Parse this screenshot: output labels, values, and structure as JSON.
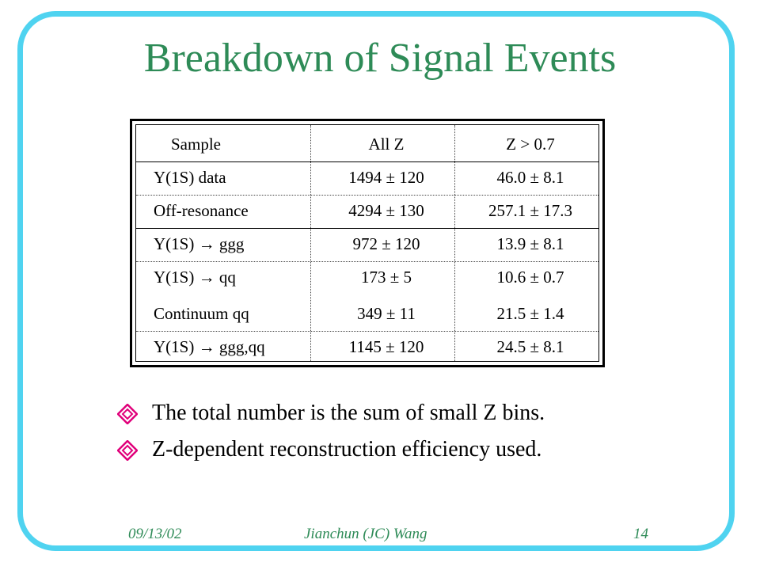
{
  "slide": {
    "title": "Breakdown of Signal Events"
  },
  "table": {
    "headers": [
      "Sample",
      "All Z",
      "Z > 0.7"
    ],
    "rows": [
      [
        "Y(1S) data",
        "1494 ± 120",
        "46.0 ± 8.1"
      ],
      [
        "Off-resonance",
        "4294 ± 130",
        "257.1 ± 17.3"
      ],
      [
        "Y(1S) → ggg",
        "972 ± 120",
        "13.9 ± 8.1"
      ],
      [
        "Y(1S) → qq",
        "173 ± 5",
        "10.6 ± 0.7"
      ],
      [
        "Continuum qq",
        "349 ± 11",
        "21.5 ± 1.4"
      ],
      [
        "Y(1S) → ggg,qq",
        "1145 ± 120",
        "24.5 ± 8.1"
      ]
    ]
  },
  "bullets": [
    "The total number is the sum of small Z bins.",
    "Z-dependent reconstruction efficiency used."
  ],
  "footer": {
    "date": "09/13/02",
    "author": "Jianchun (JC) Wang",
    "page": "14"
  },
  "colors": {
    "title": "#2e8b57",
    "frame": "#4fd3f0",
    "bullet": "#e0007a"
  }
}
